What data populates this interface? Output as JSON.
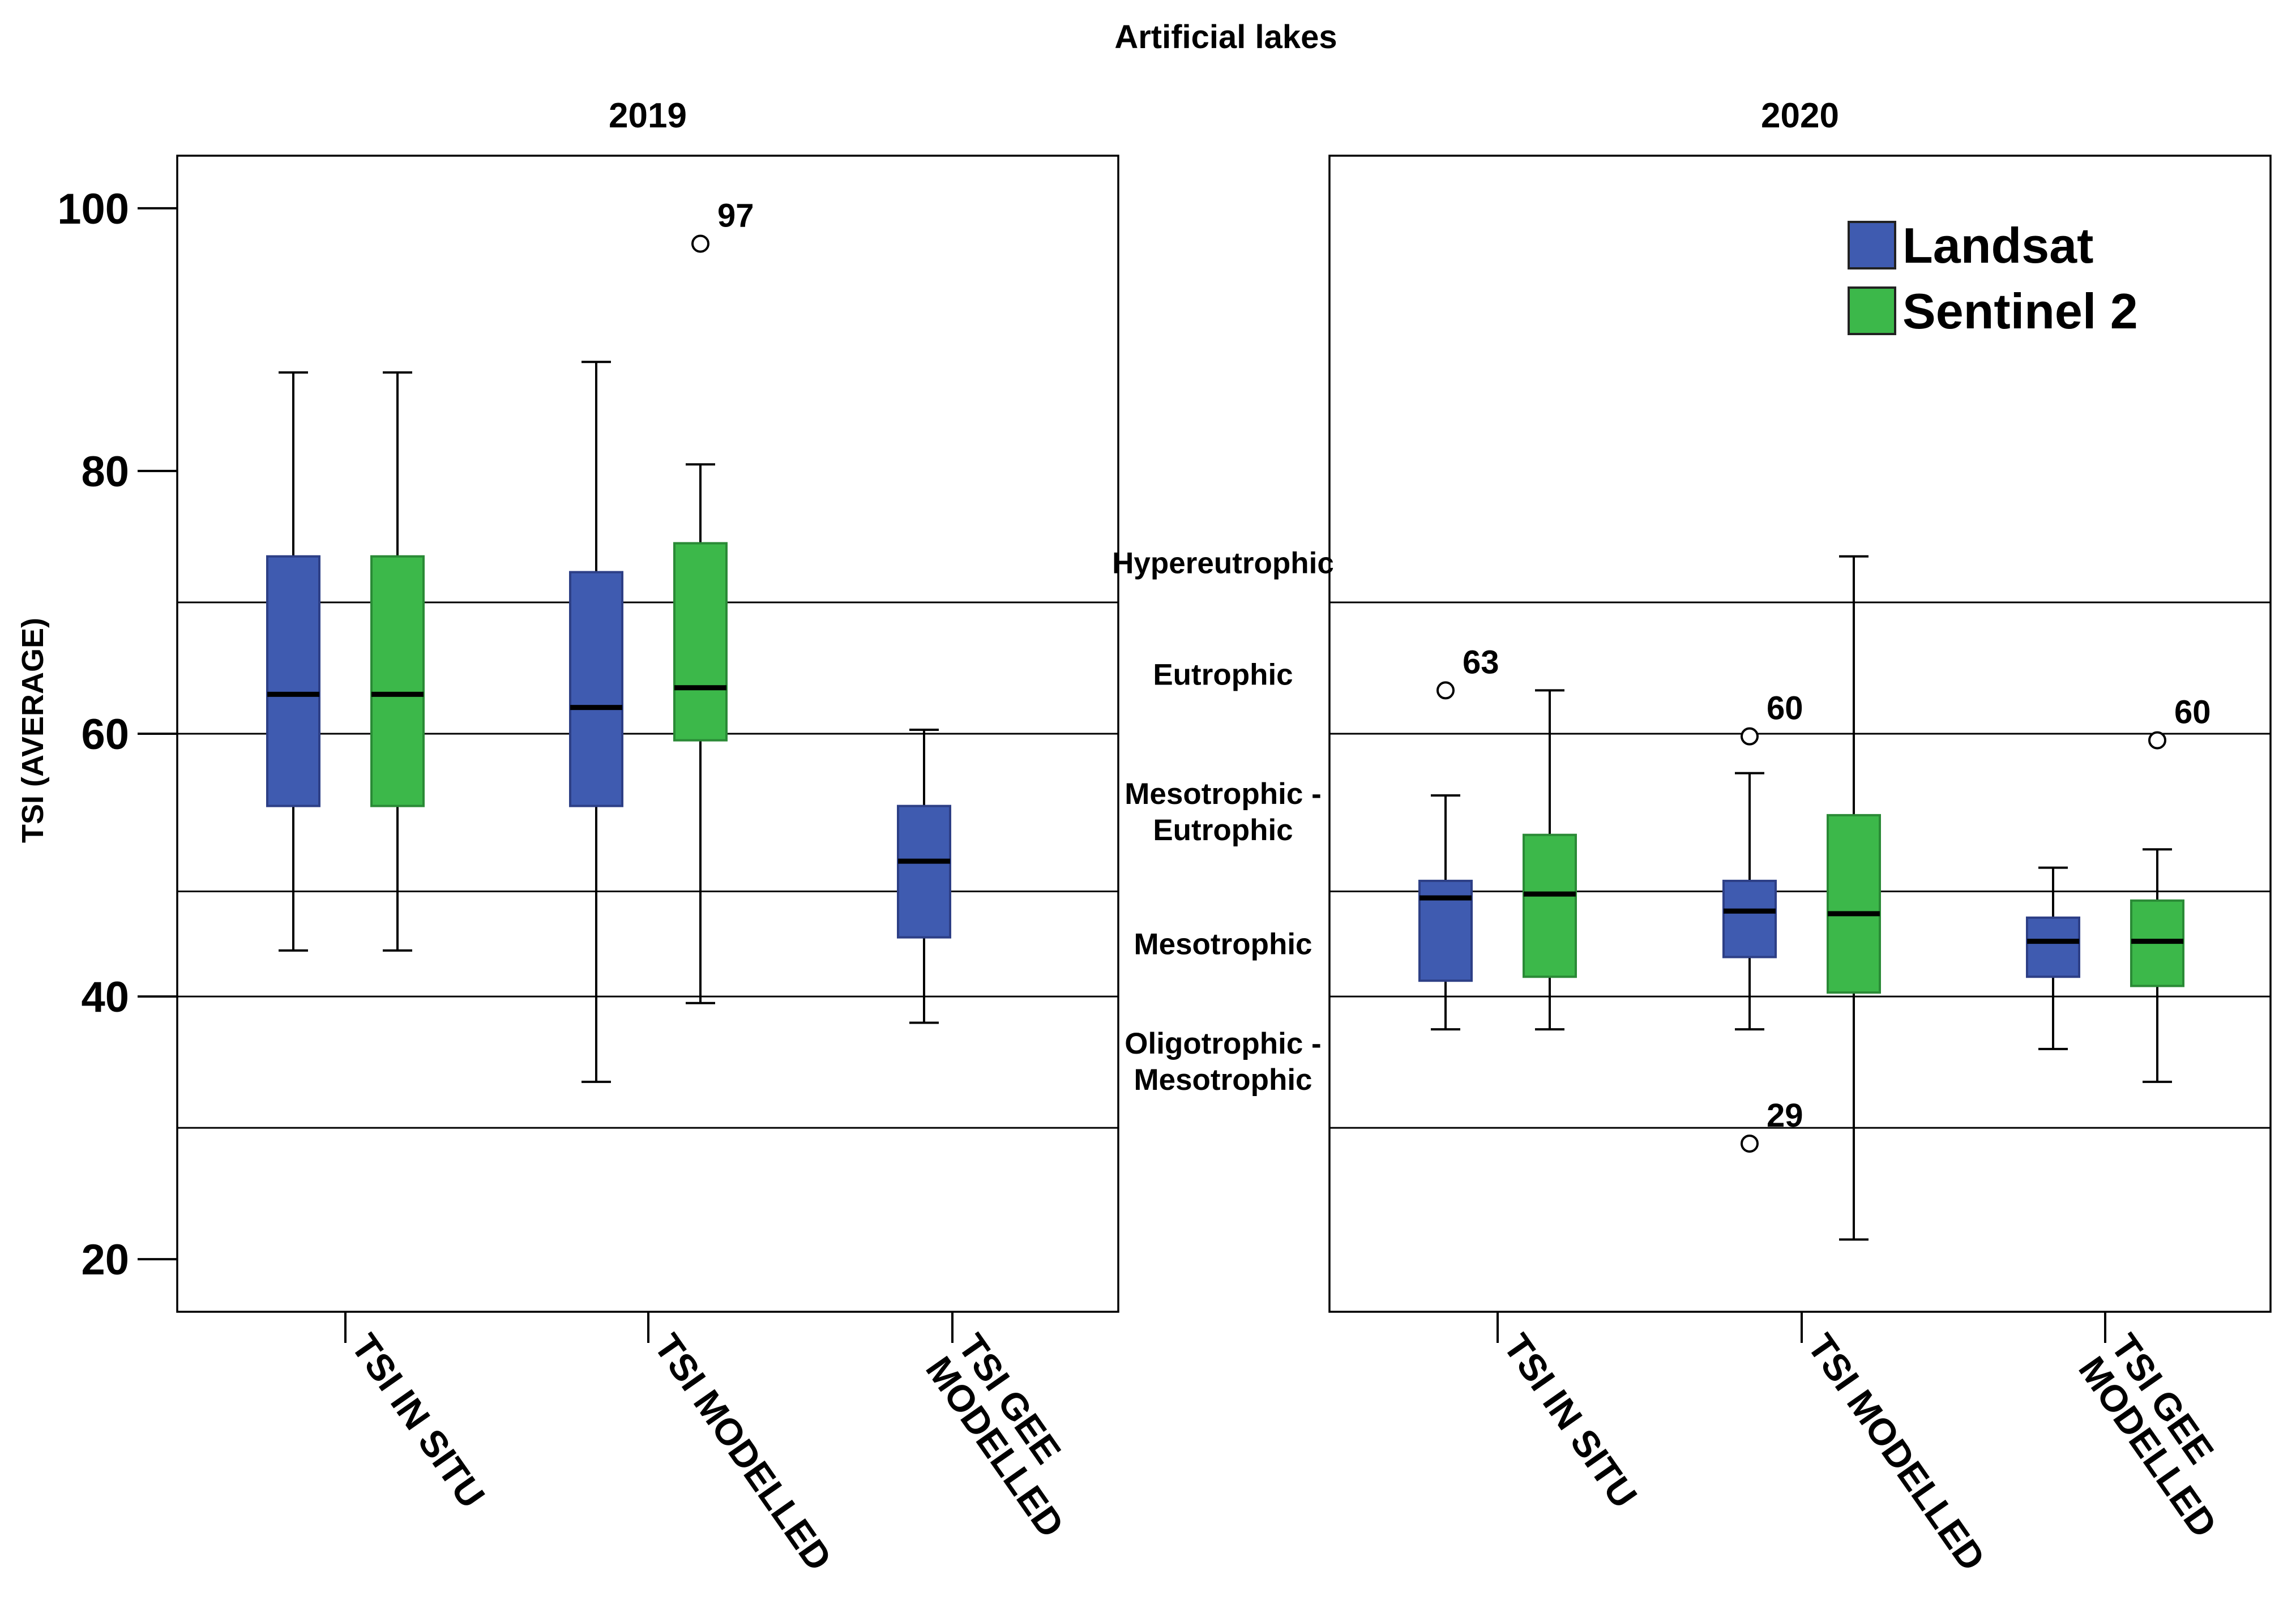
{
  "chart_data": {
    "type": "boxplot",
    "title": "Artificial lakes",
    "ylabel": "TSI (AVERAGE)",
    "ylim": [
      16,
      104
    ],
    "yticks": [
      20,
      40,
      60,
      80,
      100
    ],
    "categories": [
      "TSI IN SITU",
      "TSI MODELLED",
      "TSI GEE MODELLED"
    ],
    "legend": {
      "position": "top-right of 2020 panel",
      "entries": [
        {
          "name": "Landsat",
          "color": "#3f5bb0"
        },
        {
          "name": "Sentinel 2",
          "color": "#3cb84a"
        }
      ]
    },
    "trophic_boundaries": [
      30,
      40,
      48,
      60,
      70
    ],
    "trophic_zones": [
      {
        "lines": [
          "Hypereutrophic"
        ],
        "value": 73
      },
      {
        "lines": [
          "Eutrophic"
        ],
        "value": 64.5
      },
      {
        "lines": [
          "Mesotrophic -",
          "Eutrophic"
        ],
        "value": 54
      },
      {
        "lines": [
          "Mesotrophic"
        ],
        "value": 44
      },
      {
        "lines": [
          "Oligotrophic -",
          "Mesotrophic"
        ],
        "value": 35
      }
    ],
    "panels": [
      {
        "title": "2019",
        "boxes": [
          {
            "category": "TSI IN SITU",
            "series": "Landsat",
            "min": 43.5,
            "q1": 54.5,
            "median": 63,
            "q3": 73.5,
            "max": 87.5,
            "outliers": []
          },
          {
            "category": "TSI IN SITU",
            "series": "Sentinel 2",
            "min": 43.5,
            "q1": 54.5,
            "median": 63,
            "q3": 73.5,
            "max": 87.5,
            "outliers": []
          },
          {
            "category": "TSI MODELLED",
            "series": "Landsat",
            "min": 33.5,
            "q1": 54.5,
            "median": 62,
            "q3": 72.3,
            "max": 88.3,
            "outliers": []
          },
          {
            "category": "TSI MODELLED",
            "series": "Sentinel 2",
            "min": 39.5,
            "q1": 59.5,
            "median": 63.5,
            "q3": 74.5,
            "max": 80.5,
            "outliers": [
              {
                "value": 97.3,
                "label": "97"
              }
            ]
          },
          {
            "category": "TSI GEE MODELLED",
            "series": "Landsat",
            "min": 38,
            "q1": 44.5,
            "median": 50.3,
            "q3": 54.5,
            "max": 60.3,
            "outliers": []
          }
        ]
      },
      {
        "title": "2020",
        "boxes": [
          {
            "category": "TSI IN SITU",
            "series": "Landsat",
            "min": 37.5,
            "q1": 41.2,
            "median": 47.5,
            "q3": 48.8,
            "max": 55.3,
            "outliers": [
              {
                "value": 63.3,
                "label": "63"
              }
            ]
          },
          {
            "category": "TSI IN SITU",
            "series": "Sentinel 2",
            "min": 37.5,
            "q1": 41.5,
            "median": 47.8,
            "q3": 52.3,
            "max": 63.3,
            "outliers": []
          },
          {
            "category": "TSI MODELLED",
            "series": "Landsat",
            "min": 37.5,
            "q1": 43,
            "median": 46.5,
            "q3": 48.8,
            "max": 57,
            "outliers": [
              {
                "value": 59.8,
                "label": "60"
              },
              {
                "value": 28.8,
                "label": "29"
              }
            ]
          },
          {
            "category": "TSI MODELLED",
            "series": "Sentinel 2",
            "min": 21.5,
            "q1": 40.3,
            "median": 46.3,
            "q3": 53.8,
            "max": 73.5,
            "outliers": []
          },
          {
            "category": "TSI GEE MODELLED",
            "series": "Landsat",
            "min": 36,
            "q1": 41.5,
            "median": 44.2,
            "q3": 46,
            "max": 49.8,
            "outliers": []
          },
          {
            "category": "TSI GEE MODELLED",
            "series": "Sentinel 2",
            "min": 33.5,
            "q1": 40.8,
            "median": 44.2,
            "q3": 47.3,
            "max": 51.2,
            "outliers": [
              {
                "value": 59.5,
                "label": "60"
              }
            ]
          }
        ]
      }
    ]
  }
}
